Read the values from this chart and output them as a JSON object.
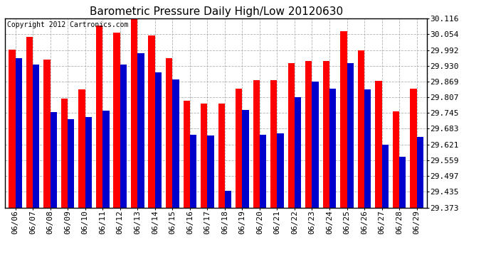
{
  "title": "Barometric Pressure Daily High/Low 20120630",
  "copyright": "Copyright 2012 Cartronics.com",
  "dates": [
    "06/06",
    "06/07",
    "06/08",
    "06/09",
    "06/10",
    "06/11",
    "06/12",
    "06/13",
    "06/14",
    "06/15",
    "06/16",
    "06/17",
    "06/18",
    "06/19",
    "06/20",
    "06/21",
    "06/22",
    "06/23",
    "06/24",
    "06/25",
    "06/26",
    "06/27",
    "06/28",
    "06/29"
  ],
  "highs": [
    29.993,
    30.045,
    29.955,
    29.8,
    29.838,
    30.09,
    30.06,
    30.116,
    30.05,
    29.96,
    29.792,
    29.783,
    29.783,
    29.84,
    29.873,
    29.873,
    29.94,
    29.95,
    29.948,
    30.066,
    29.992,
    29.87,
    29.752,
    29.84
  ],
  "lows": [
    29.96,
    29.935,
    29.748,
    29.72,
    29.73,
    29.755,
    29.935,
    29.98,
    29.905,
    29.877,
    29.658,
    29.655,
    29.438,
    29.758,
    29.658,
    29.665,
    29.808,
    29.868,
    29.84,
    29.94,
    29.838,
    29.62,
    29.573,
    29.65
  ],
  "ylim_min": 29.373,
  "ylim_max": 30.116,
  "yticks": [
    29.373,
    29.435,
    29.497,
    29.559,
    29.621,
    29.683,
    29.745,
    29.807,
    29.869,
    29.93,
    29.992,
    30.054,
    30.116
  ],
  "high_color": "#ff0000",
  "low_color": "#0000cc",
  "bg_color": "#ffffff",
  "grid_color": "#aaaaaa",
  "title_fontsize": 11,
  "tick_fontsize": 8,
  "bar_width": 0.38
}
